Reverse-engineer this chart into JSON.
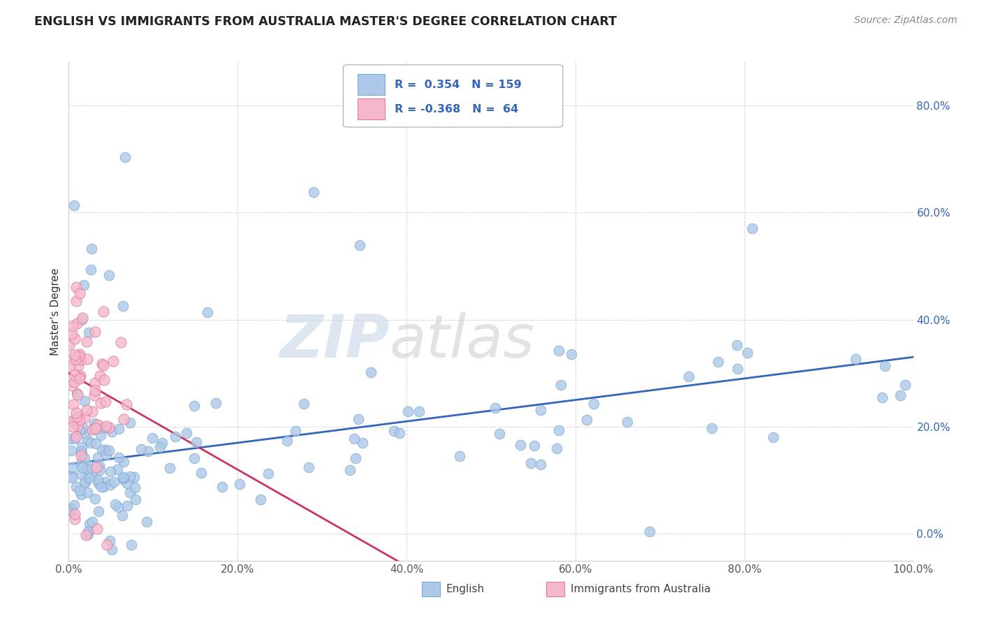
{
  "title": "ENGLISH VS IMMIGRANTS FROM AUSTRALIA MASTER'S DEGREE CORRELATION CHART",
  "source": "Source: ZipAtlas.com",
  "xlabel": "",
  "ylabel": "Master's Degree",
  "xlim": [
    0,
    1.0
  ],
  "ylim": [
    -0.05,
    0.88
  ],
  "x_ticks": [
    0.0,
    0.2,
    0.4,
    0.6,
    0.8,
    1.0
  ],
  "x_tick_labels": [
    "0.0%",
    "20.0%",
    "40.0%",
    "60.0%",
    "80.0%",
    "100.0%"
  ],
  "y_ticks": [
    0.0,
    0.2,
    0.4,
    0.6,
    0.8
  ],
  "y_tick_labels": [
    "0.0%",
    "20.0%",
    "40.0%",
    "60.0%",
    "80.0%"
  ],
  "legend_labels": [
    "English",
    "Immigrants from Australia"
  ],
  "series1_label": "R =  0.354   N = 159",
  "series2_label": "R = -0.368   N =  64",
  "series1_color": "#adc8e8",
  "series2_color": "#f5b8cb",
  "series1_edge": "#7aaad4",
  "series2_edge": "#e07898",
  "line1_color": "#3366bb",
  "line2_color": "#cc3366",
  "background_color": "#ffffff",
  "grid_color": "#cccccc",
  "watermark_zip": "ZIP",
  "watermark_atlas": "atlas",
  "series1_intercept": 0.13,
  "series1_slope": 0.2,
  "series2_intercept": 0.3,
  "series2_slope": -0.9,
  "line1_x_start": 0.0,
  "line1_x_end": 1.0,
  "line2_x_start": 0.0,
  "line2_x_end": 0.4
}
